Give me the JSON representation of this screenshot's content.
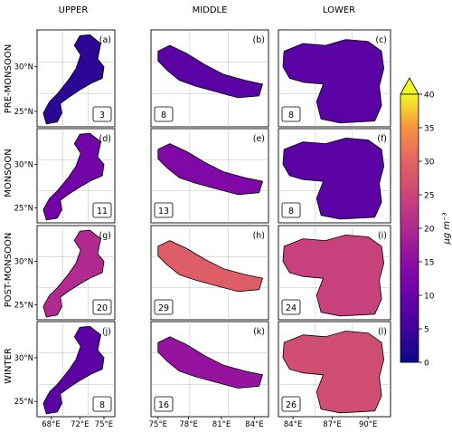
{
  "chart_data": {
    "type": "heatmap",
    "columns": [
      "UPPER",
      "MIDDLE",
      "LOWER"
    ],
    "rows": [
      "PRE-MONSOON",
      "MONSOON",
      "POST-MONSOON",
      "WINTER"
    ],
    "panels": [
      [
        {
          "letter": "(a)",
          "value": 3
        },
        {
          "letter": "(b)",
          "value": 8
        },
        {
          "letter": "(c)",
          "value": 8
        }
      ],
      [
        {
          "letter": "(d)",
          "value": 11
        },
        {
          "letter": "(e)",
          "value": 13
        },
        {
          "letter": "(f)",
          "value": 8
        }
      ],
      [
        {
          "letter": "(g)",
          "value": 20
        },
        {
          "letter": "(h)",
          "value": 29
        },
        {
          "letter": "(i)",
          "value": 24
        }
      ],
      [
        {
          "letter": "(j)",
          "value": 8
        },
        {
          "letter": "(k)",
          "value": 16
        },
        {
          "letter": "(l)",
          "value": 26
        }
      ]
    ],
    "y_ticks": [
      "30°N",
      "25°N"
    ],
    "x_ticks": [
      [
        "68°E",
        "72°E",
        "75°E"
      ],
      [
        "75°E",
        "78°E",
        "81°E",
        "84°E"
      ],
      [
        "84°E",
        "87°E",
        "90°E"
      ]
    ],
    "colorbar": {
      "label": "μg m⁻³",
      "ticks": [
        0,
        5,
        10,
        15,
        20,
        25,
        30,
        35,
        40
      ],
      "range": [
        0,
        40
      ],
      "extend": "max",
      "colormap": "plasma"
    }
  }
}
